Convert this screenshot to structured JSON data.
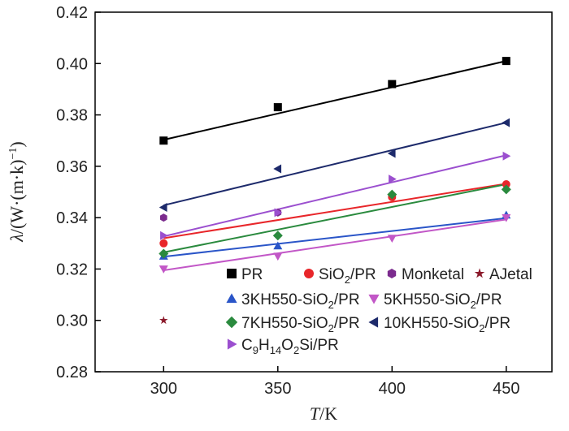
{
  "chart_data": {
    "type": "scatter",
    "xlabel": {
      "italic": "T",
      "rest": "/K"
    },
    "ylabel": {
      "italic": "λ",
      "rest": "/(W·(m·k)",
      "sup": "−1",
      "close": ")"
    },
    "xlim": [
      270,
      470
    ],
    "ylim": [
      0.28,
      0.42
    ],
    "x_ticks": [
      "300",
      "350",
      "400",
      "450"
    ],
    "y_ticks": [
      "0.28",
      "0.30",
      "0.32",
      "0.34",
      "0.36",
      "0.38",
      "0.40",
      "0.42"
    ],
    "grid": false,
    "legend_position": "bottom-right",
    "series": [
      {
        "name": "PR",
        "parts": [
          [
            "PR",
            ""
          ]
        ],
        "color": "#000000",
        "marker": "square",
        "x": [
          300,
          350,
          400,
          450
        ],
        "y": [
          0.37,
          0.383,
          0.392,
          0.401
        ],
        "fit": [
          0.3703,
          0.401
        ]
      },
      {
        "name": "SiO2/PR",
        "parts": [
          [
            "SiO",
            ""
          ],
          [
            "2",
            "sub"
          ],
          [
            "/PR",
            ""
          ]
        ],
        "color": "#e8262a",
        "marker": "circle",
        "x": [
          300,
          400,
          450
        ],
        "y": [
          0.33,
          0.348,
          0.353
        ],
        "fit": [
          0.332,
          0.3532
        ]
      },
      {
        "name": "Monketal",
        "parts": [
          [
            "Monketal",
            ""
          ]
        ],
        "color": "#7b2b8e",
        "marker": "hexagon",
        "x": [
          300,
          350
        ],
        "y": [
          0.34,
          0.342
        ],
        "fit": null
      },
      {
        "name": "AJetal",
        "parts": [
          [
            "AJetal",
            ""
          ]
        ],
        "color": "#8b1a2b",
        "marker": "star",
        "x": [
          300
        ],
        "y": [
          0.3
        ],
        "fit": null
      },
      {
        "name": "3KH550-SiO2/PR",
        "parts": [
          [
            "3KH550-SiO",
            ""
          ],
          [
            "2",
            "sub"
          ],
          [
            "/PR",
            ""
          ]
        ],
        "color": "#2a55c8",
        "marker": "triangle-up",
        "x": [
          300,
          350,
          450
        ],
        "y": [
          0.325,
          0.329,
          0.341
        ],
        "fit": [
          0.3248,
          0.3398
        ]
      },
      {
        "name": "5KH550-SiO2/PR",
        "parts": [
          [
            "5KH550-SiO",
            ""
          ],
          [
            "2",
            "sub"
          ],
          [
            "/PR",
            ""
          ]
        ],
        "color": "#c257c7",
        "marker": "triangle-down",
        "x": [
          300,
          350,
          400,
          450
        ],
        "y": [
          0.32,
          0.325,
          0.332,
          0.34
        ],
        "fit": [
          0.3195,
          0.3393
        ]
      },
      {
        "name": "7KH550-SiO2/PR",
        "parts": [
          [
            "7KH550-SiO",
            ""
          ],
          [
            "2",
            "sub"
          ],
          [
            "/PR",
            ""
          ]
        ],
        "color": "#2a8a3e",
        "marker": "diamond",
        "x": [
          300,
          350,
          400,
          450
        ],
        "y": [
          0.326,
          0.333,
          0.349,
          0.351
        ],
        "fit": [
          0.3265,
          0.353
        ]
      },
      {
        "name": "10KH550-SiO2/PR",
        "parts": [
          [
            "10KH550-SiO",
            ""
          ],
          [
            "2",
            "sub"
          ],
          [
            "/PR",
            ""
          ]
        ],
        "color": "#1d2a6b",
        "marker": "triangle-left",
        "x": [
          300,
          350,
          400,
          450
        ],
        "y": [
          0.344,
          0.359,
          0.365,
          0.377
        ],
        "fit": [
          0.3448,
          0.377
        ]
      },
      {
        "name": "C9H14O2Si/PR",
        "parts": [
          [
            "C",
            ""
          ],
          [
            "9",
            "sub"
          ],
          [
            "H",
            ""
          ],
          [
            "14",
            "sub"
          ],
          [
            "O",
            ""
          ],
          [
            "2",
            "sub"
          ],
          [
            "Si/PR",
            ""
          ]
        ],
        "color": "#9b4fcf",
        "marker": "triangle-right",
        "x": [
          300,
          350,
          400,
          450
        ],
        "y": [
          0.333,
          0.342,
          0.355,
          0.364
        ],
        "fit": [
          0.3327,
          0.3643
        ]
      }
    ]
  }
}
